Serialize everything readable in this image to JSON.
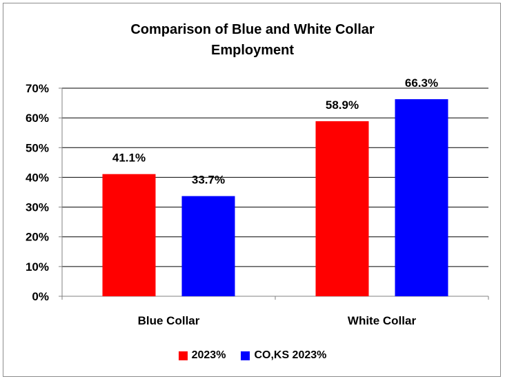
{
  "chart_data": {
    "type": "bar",
    "title": "Comparison of Blue and White Collar Employment",
    "title_lines": [
      "Comparison of Blue and White Collar",
      "Employment"
    ],
    "categories": [
      "Blue Collar",
      "White Collar"
    ],
    "series": [
      {
        "name": "2023%",
        "values": [
          41.1,
          58.9
        ],
        "labels": [
          "41.1%",
          "58.9%"
        ],
        "color": "#ff0000"
      },
      {
        "name": "CO,KS 2023%",
        "values": [
          33.7,
          66.3
        ],
        "labels": [
          "33.7%",
          "66.3%"
        ],
        "color": "#0000ff"
      }
    ],
    "ylim": [
      0,
      70
    ],
    "yticks": [
      "0%",
      "10%",
      "20%",
      "30%",
      "40%",
      "50%",
      "60%",
      "70%"
    ],
    "grid": true,
    "legend_position": "bottom",
    "xlabel": "",
    "ylabel": ""
  }
}
